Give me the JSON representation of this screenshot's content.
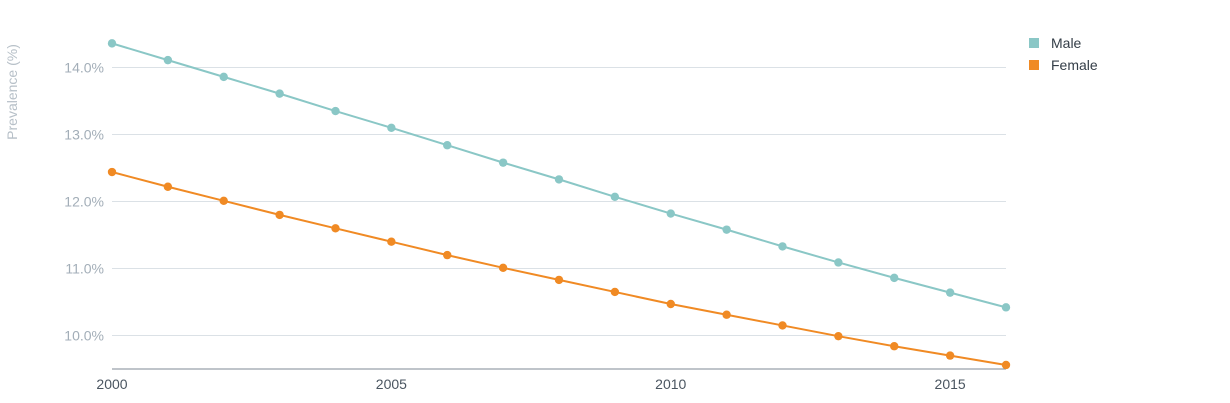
{
  "chart_data": {
    "type": "line",
    "title": "",
    "xlabel": "",
    "ylabel": "Prevalence (%)",
    "x": [
      2000,
      2001,
      2002,
      2003,
      2004,
      2005,
      2006,
      2007,
      2008,
      2009,
      2010,
      2011,
      2012,
      2013,
      2014,
      2015,
      2016
    ],
    "series": [
      {
        "name": "Male",
        "color": "#8ac7c6",
        "values": [
          14.36,
          14.11,
          13.86,
          13.61,
          13.35,
          13.1,
          12.84,
          12.58,
          12.33,
          12.07,
          11.82,
          11.58,
          11.33,
          11.09,
          10.86,
          10.64,
          10.42
        ]
      },
      {
        "name": "Female",
        "color": "#f08a24",
        "values": [
          12.44,
          12.22,
          12.01,
          11.8,
          11.6,
          11.4,
          11.2,
          11.01,
          10.83,
          10.65,
          10.47,
          10.31,
          10.15,
          9.99,
          9.84,
          9.7,
          9.56
        ]
      }
    ],
    "xticks": [
      "2000",
      "2005",
      "2010",
      "2015"
    ],
    "yticks": [
      "10.0%",
      "11.0%",
      "12.0%",
      "13.0%",
      "14.0%"
    ],
    "xlim": [
      2000,
      2016
    ],
    "ylim": [
      9.5,
      14.5
    ],
    "grid": true,
    "legend_position": "top-right"
  }
}
